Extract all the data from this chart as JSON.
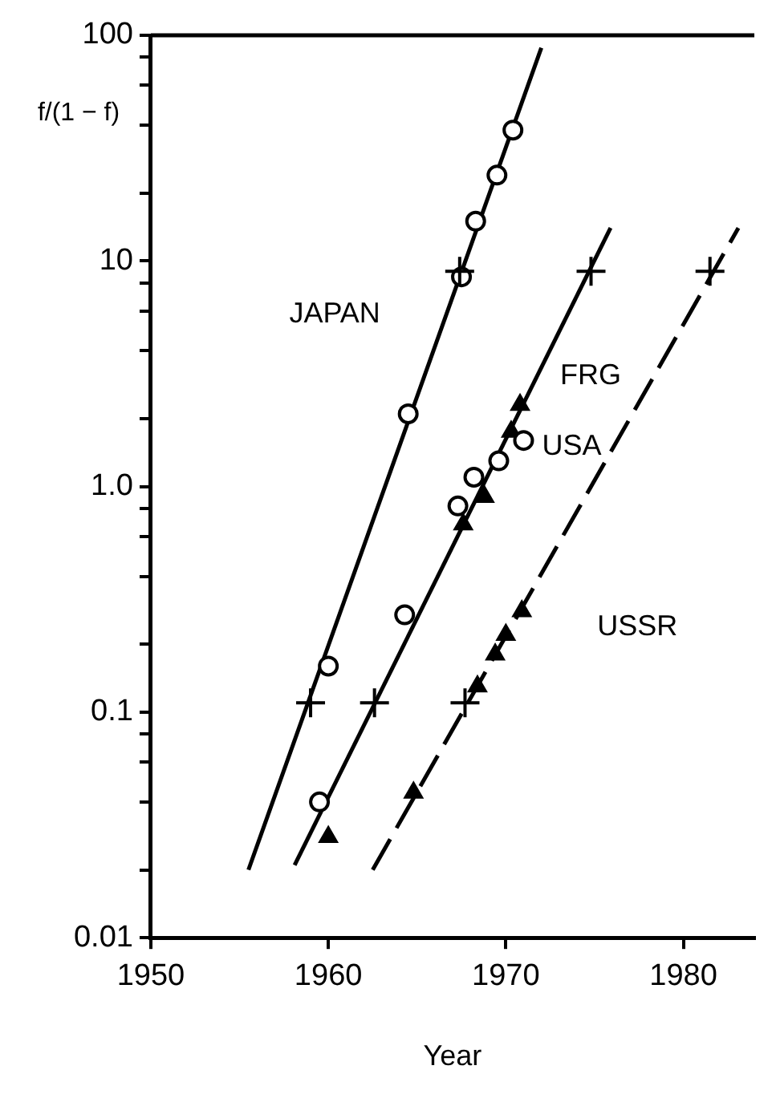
{
  "chart_data": {
    "type": "scatter",
    "xlabel": "Year",
    "ylabel": "f/(1 − f)",
    "xlim": [
      1950,
      1984
    ],
    "xticks": [
      1950,
      1960,
      1970,
      1980
    ],
    "ylim": [
      0.01,
      100
    ],
    "yticks": [
      0.01,
      {
        "value": 0.02,
        "label": null
      },
      {
        "value": 0.04,
        "label": null
      },
      {
        "value": 0.06,
        "label": null
      },
      {
        "value": 0.08,
        "label": null
      },
      0.1,
      {
        "value": 0.2,
        "label": null
      },
      {
        "value": 0.4,
        "label": null
      },
      {
        "value": 0.6,
        "label": null
      },
      {
        "value": 0.8,
        "label": null
      },
      {
        "value": 1,
        "label": "1.0"
      },
      {
        "value": 2,
        "label": null
      },
      {
        "value": 4,
        "label": null
      },
      {
        "value": 6,
        "label": null
      },
      {
        "value": 8,
        "label": null
      },
      10,
      {
        "value": 20,
        "label": null
      },
      {
        "value": 40,
        "label": null
      },
      {
        "value": 60,
        "label": null
      },
      {
        "value": 80,
        "label": null
      },
      100
    ],
    "log": "y",
    "grid": false,
    "legend": false,
    "series": [
      {
        "name": "JAPAN",
        "type": "scatter",
        "marker": "circle",
        "color": "#000000",
        "x": [
          1960,
          1964.5,
          1967.5,
          1968.3,
          1969.5,
          1970.4
        ],
        "values": [
          0.16,
          2.1,
          8.5,
          15,
          24,
          38
        ]
      },
      {
        "type": "line",
        "marker": "none",
        "line_style": "solid",
        "color": "#000000",
        "x": [
          1955.5,
          1972
        ],
        "values": [
          0.02,
          88
        ]
      },
      {
        "name": "USA",
        "type": "scatter",
        "marker": "circle",
        "color": "#000000",
        "x": [
          1959.5,
          1964.3,
          1967.3,
          1968.2,
          1969.6,
          1971
        ],
        "values": [
          0.04,
          0.27,
          0.82,
          1.1,
          1.3,
          1.6
        ]
      },
      {
        "name": "FRG",
        "type": "scatter",
        "marker": "triangle",
        "color": "#000000",
        "x": [
          1960,
          1967.6,
          1968.8,
          1970.3,
          1970.8
        ],
        "values": [
          0.028,
          0.68,
          0.9,
          1.75,
          2.3
        ]
      },
      {
        "type": "line",
        "marker": "none",
        "line_style": "solid",
        "color": "#000000",
        "x": [
          1958.1,
          1975.9
        ],
        "values": [
          0.021,
          14
        ]
      },
      {
        "name": "USSR",
        "type": "scatter",
        "marker": "triangle",
        "color": "#000000",
        "x": [
          1964.8,
          1968.4,
          1969.4,
          1970,
          1970.9
        ],
        "values": [
          0.044,
          0.13,
          0.18,
          0.22,
          0.28
        ]
      },
      {
        "type": "line",
        "marker": "none",
        "line_style": "dashed",
        "color": "#000000",
        "x": [
          1962.5,
          1983.1
        ],
        "values": [
          0.02,
          14
        ]
      },
      {
        "type": "scatter",
        "marker": "cross",
        "color": "#000000",
        "x": [
          1959,
          1967.4,
          1962.6,
          1974.8,
          1967.7,
          1981.5
        ],
        "values": [
          0.11,
          9,
          0.11,
          9,
          0.11,
          9
        ]
      }
    ]
  }
}
